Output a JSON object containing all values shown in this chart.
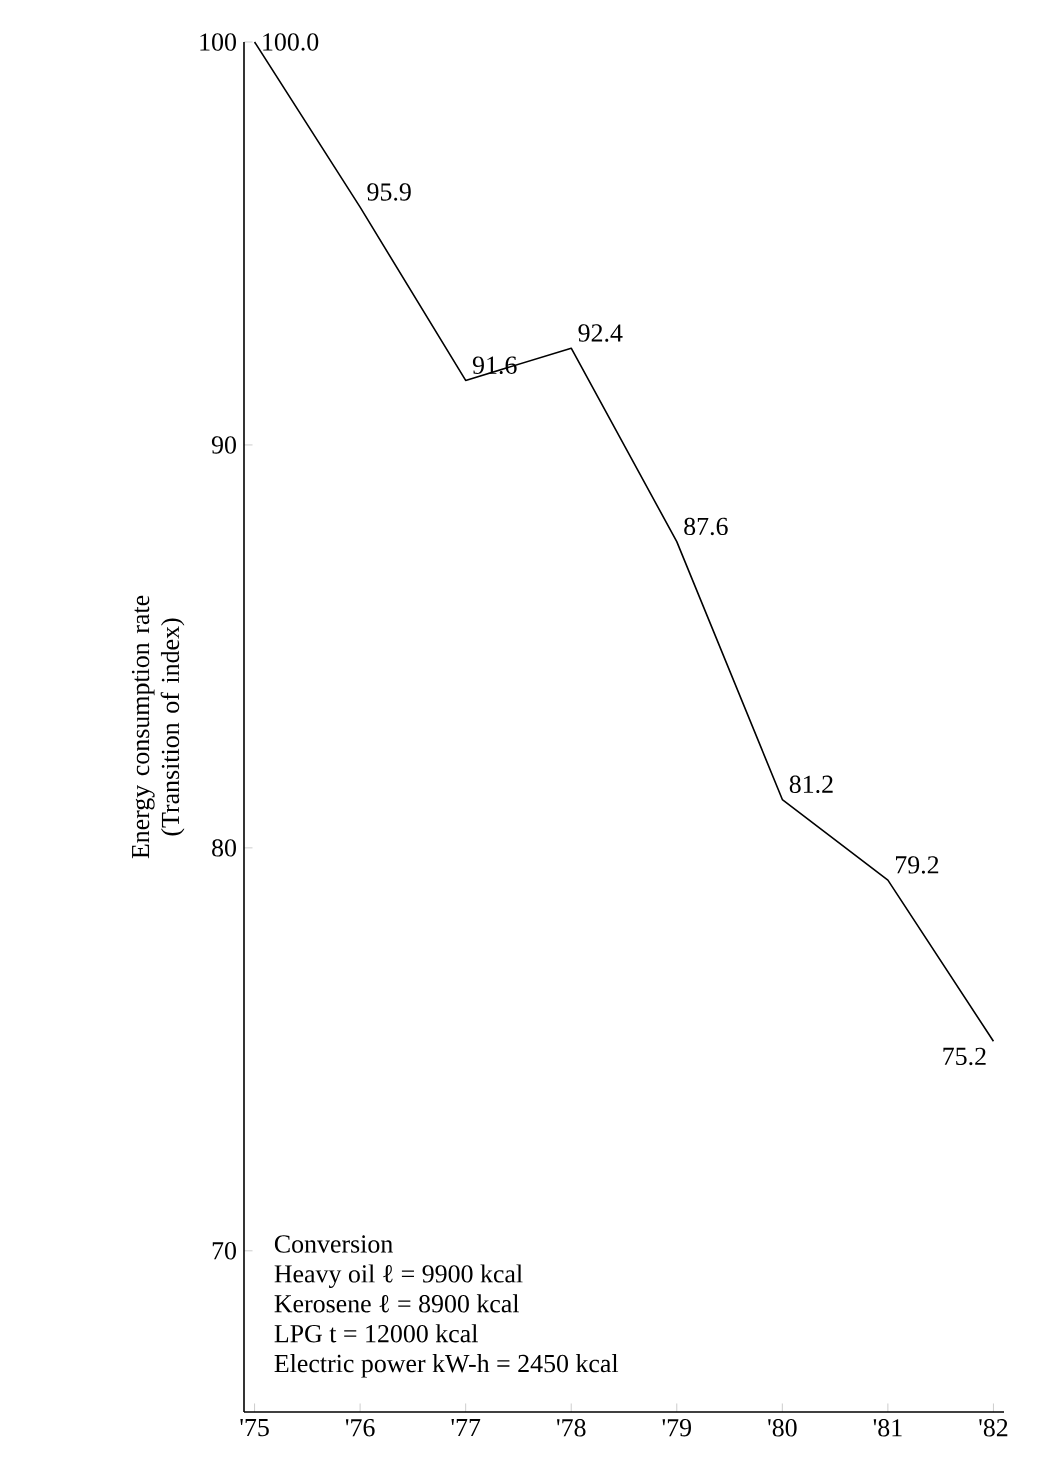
{
  "chart_data": {
    "type": "line",
    "ylabel": "Energy consumption rate (Transition of index)",
    "categories": [
      "'75",
      "'76",
      "'77",
      "'78",
      "'79",
      "'80",
      "'81",
      "'82"
    ],
    "values": [
      100.0,
      95.9,
      91.6,
      92.4,
      87.6,
      81.2,
      79.2,
      75.2
    ],
    "value_labels": [
      "100.0",
      "95.9",
      "91.6",
      "92.4",
      "87.6",
      "81.2",
      "79.2",
      "75.2"
    ],
    "color": "#000000",
    "ylim": [
      66,
      100
    ],
    "yticks": [
      70,
      80,
      90,
      100
    ],
    "grid": false,
    "marker": "none",
    "line_style": "solid",
    "annotations": [
      "Conversion",
      "Heavy oil ℓ = 9900 kcal",
      "Kerosene ℓ = 8900 kcal",
      "LPG t = 12000 kcal",
      "Electric power kW-h = 2450 kcal"
    ]
  }
}
